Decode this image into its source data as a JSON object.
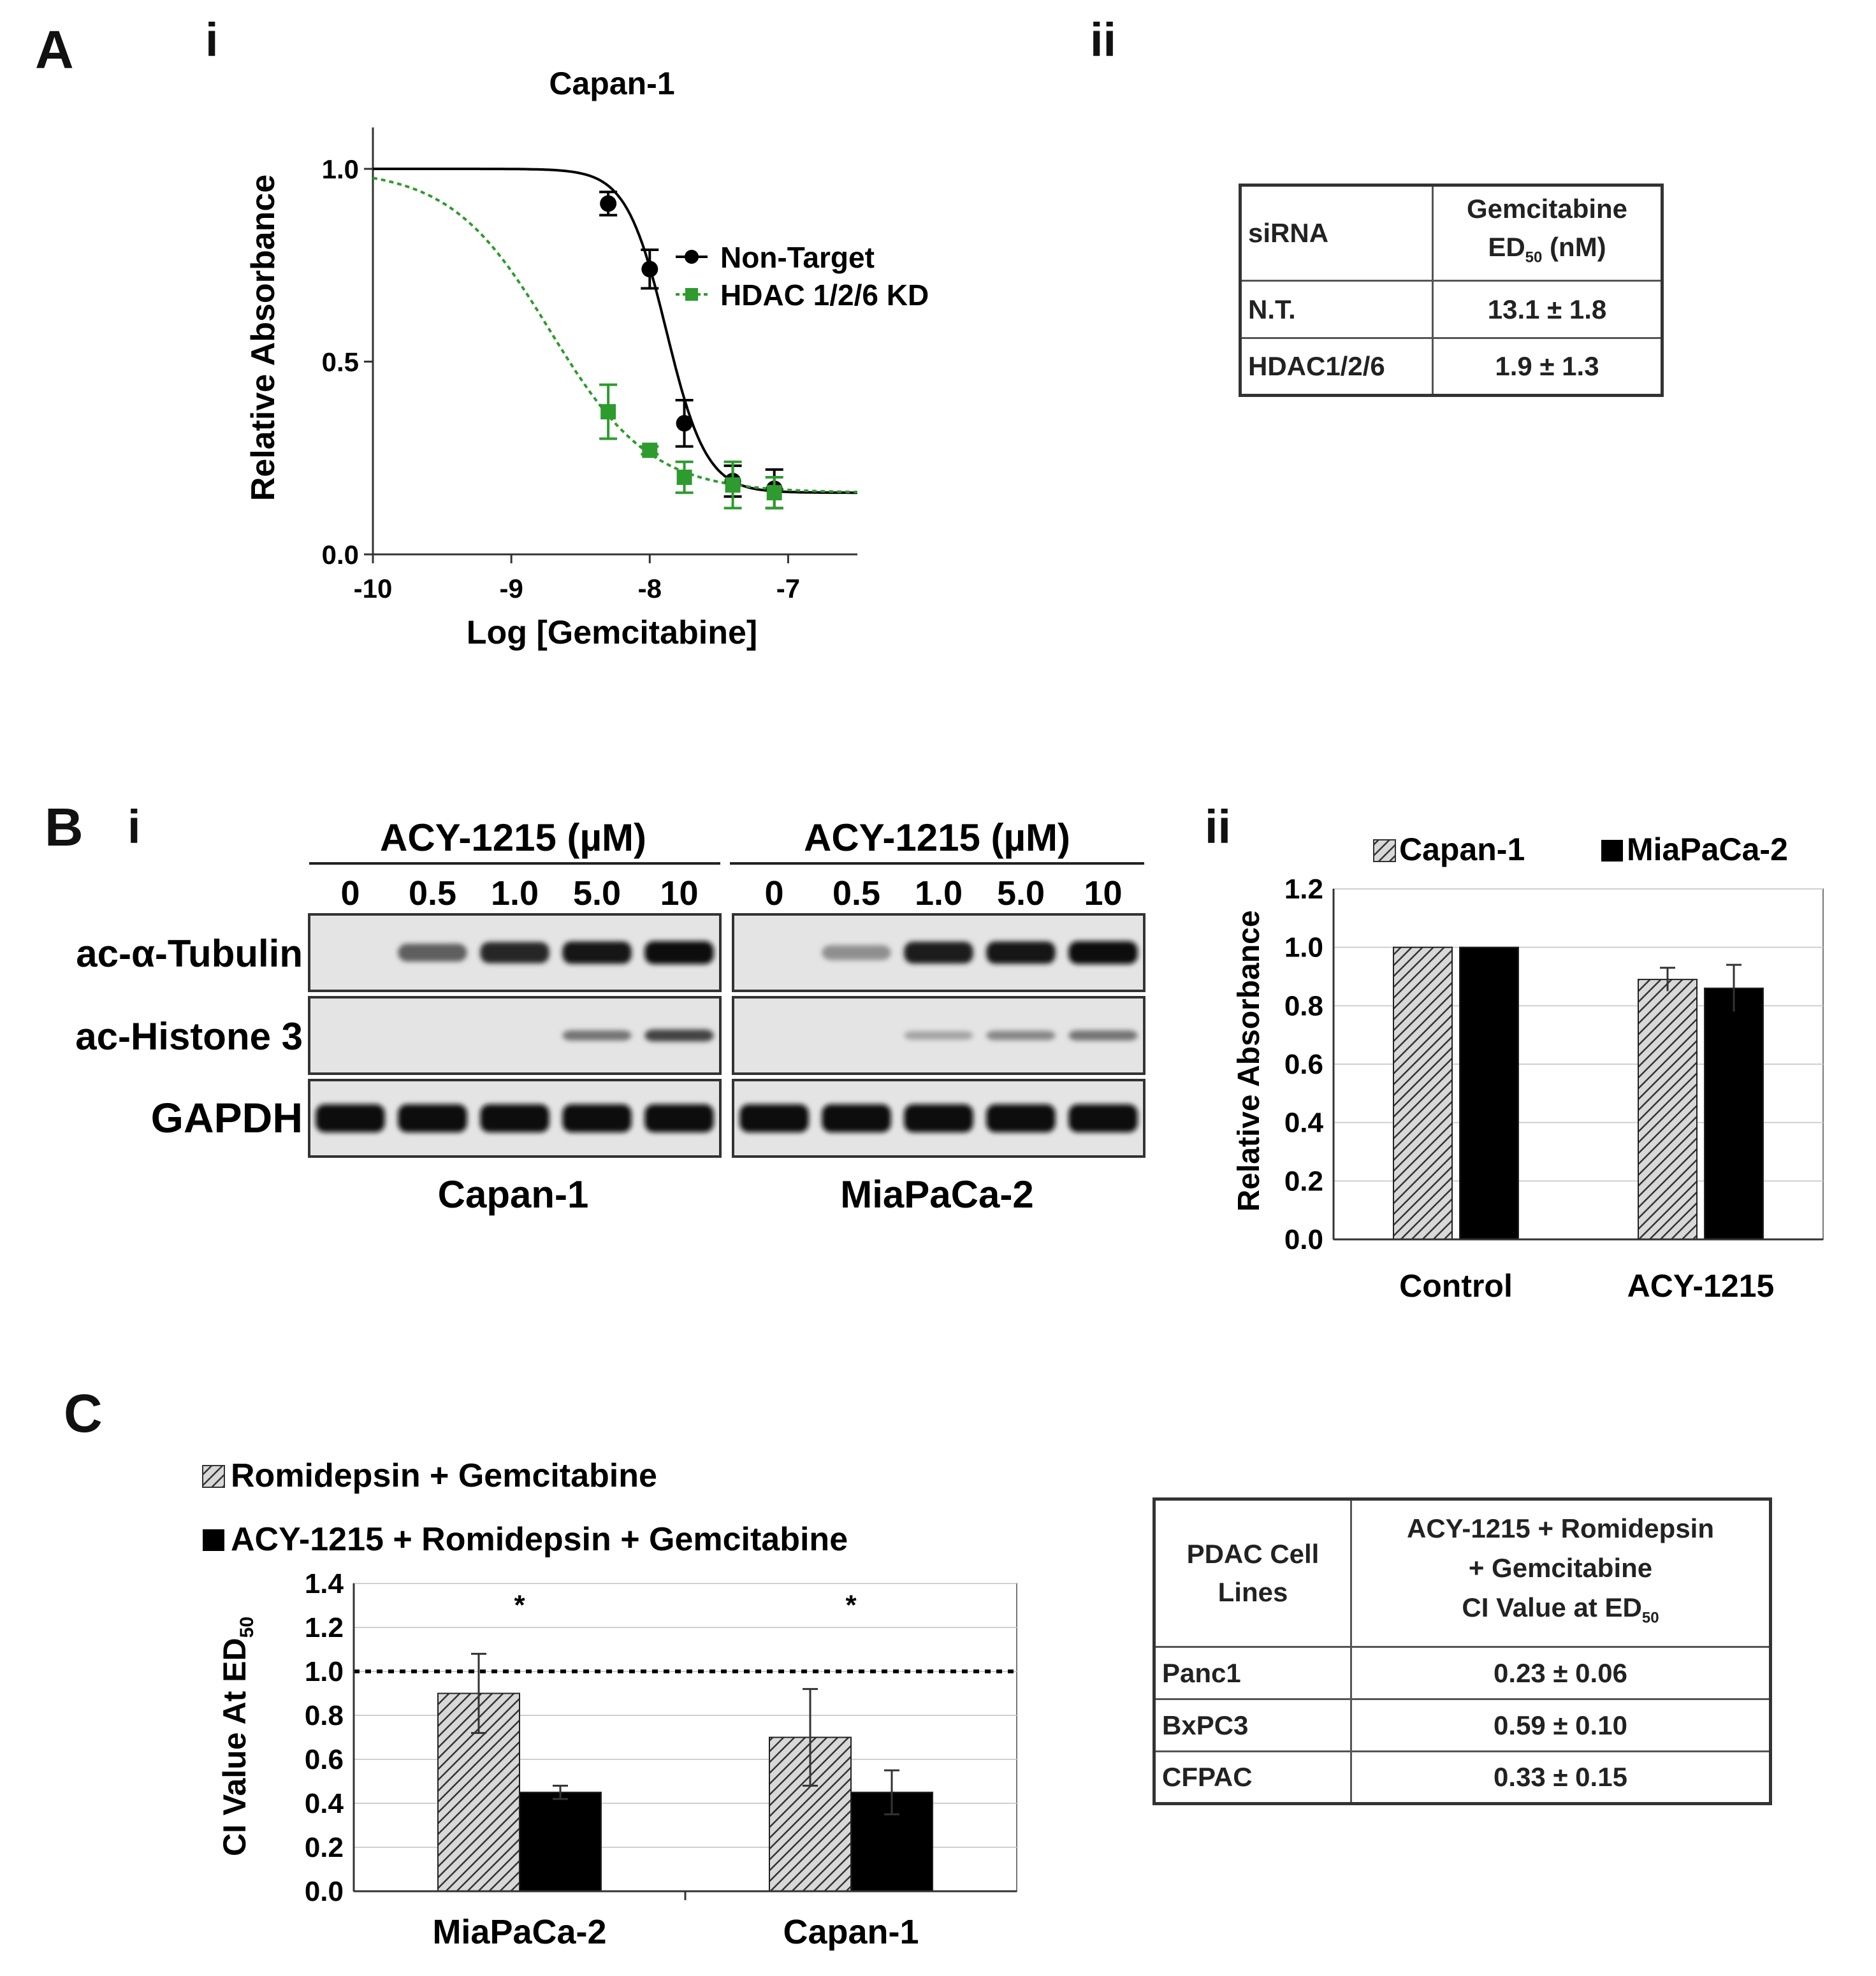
{
  "panelA": {
    "label": "A",
    "sub_i": "i",
    "sub_ii": "ii",
    "chart_data": {
      "type": "line",
      "title": "Capan-1",
      "xlabel": "Log [Gemcitabine]",
      "ylabel": "Relative Absorbance",
      "xlim": [
        -10,
        -6.5
      ],
      "ylim": [
        0,
        1.1
      ],
      "xticks": [
        "-10",
        "-9",
        "-8",
        "-7"
      ],
      "yticks": [
        "0.0",
        "0.5",
        "1.0"
      ],
      "series": [
        {
          "name": "Non-Target",
          "color": "#000000",
          "style": "solid",
          "marker": "circle",
          "x": [
            -8.3,
            -8.0,
            -7.75,
            -7.4,
            -7.1
          ],
          "y": [
            0.91,
            0.74,
            0.34,
            0.19,
            0.17
          ],
          "err": [
            0.03,
            0.05,
            0.06,
            0.04,
            0.05
          ],
          "fit": {
            "top": 1.0,
            "bottom": 0.16,
            "logEC50": -7.88,
            "hill": 3.0
          }
        },
        {
          "name": "HDAC 1/2/6 KD",
          "color": "#2e9b2e",
          "style": "dotted",
          "marker": "square",
          "x": [
            -8.3,
            -8.0,
            -7.75,
            -7.4,
            -7.1
          ],
          "y": [
            0.37,
            0.27,
            0.2,
            0.18,
            0.16
          ],
          "err": [
            0.07,
            0.01,
            0.04,
            0.06,
            0.04
          ],
          "fit": {
            "top": 1.0,
            "bottom": 0.16,
            "logEC50": -8.72,
            "hill": 1.2
          }
        }
      ]
    },
    "table": {
      "header": [
        "siRNA",
        "Gemcitabine",
        "ED",
        "50",
        "(nM)"
      ],
      "rows": [
        [
          "N.T.",
          "13.1 ± 1.8"
        ],
        [
          "HDAC1/2/6",
          "1.9 ± 1.3"
        ]
      ]
    }
  },
  "panelB": {
    "label": "B",
    "sub_i": "i",
    "sub_ii": "ii",
    "blot": {
      "treatment": "ACY-1215 (µM)",
      "doses": [
        "0",
        "0.5",
        "1.0",
        "5.0",
        "10"
      ],
      "rows": [
        "ac-α-Tubulin",
        "ac-Histone 3",
        "GAPDH"
      ],
      "cell_lines": [
        "Capan-1",
        "MiaPaCa-2"
      ],
      "intensity": {
        "Capan-1": {
          "tub": [
            0.0,
            0.55,
            0.85,
            0.95,
            1.0
          ],
          "his": [
            0.0,
            0.0,
            0.0,
            0.45,
            0.7
          ],
          "gapdh": [
            1,
            1,
            1,
            1,
            1
          ]
        },
        "MiaPaCa-2": {
          "tub": [
            0.0,
            0.3,
            0.9,
            0.95,
            1.0
          ],
          "his": [
            0.0,
            0.0,
            0.2,
            0.35,
            0.45
          ],
          "gapdh": [
            1,
            1,
            1,
            1,
            1
          ]
        }
      }
    },
    "chart_data": {
      "type": "bar",
      "categories": [
        "Control",
        "ACY-1215"
      ],
      "series": [
        {
          "name": "Capan-1",
          "pattern": "hatched",
          "values": [
            1.0,
            0.89
          ],
          "err": [
            0,
            0.04
          ]
        },
        {
          "name": "MiaPaCa-2",
          "pattern": "solid",
          "values": [
            1.0,
            0.86
          ],
          "err": [
            0,
            0.08
          ]
        }
      ],
      "ylabel": "Relative Absorbance",
      "ylim": [
        0,
        1.2
      ],
      "yticks": [
        "0.0",
        "0.2",
        "0.4",
        "0.6",
        "0.8",
        "1.0",
        "1.2"
      ],
      "legend": "top"
    }
  },
  "panelC": {
    "label": "C",
    "chart_data": {
      "type": "bar",
      "categories": [
        "MiaPaCa-2",
        "Capan-1"
      ],
      "series": [
        {
          "name": "Romidepsin + Gemcitabine",
          "pattern": "hatched",
          "values": [
            0.9,
            0.7
          ],
          "err": [
            0.18,
            0.22
          ]
        },
        {
          "name": "ACY-1215 + Romidepsin + Gemcitabine",
          "pattern": "solid",
          "values": [
            0.45,
            0.45
          ],
          "err": [
            0.03,
            0.1
          ]
        }
      ],
      "ylabel": "CI Value At ED",
      "ylabel_sub": "50",
      "ylim": [
        0,
        1.4
      ],
      "yticks": [
        "0.0",
        "0.2",
        "0.4",
        "0.6",
        "0.8",
        "1.0",
        "1.2",
        "1.4"
      ],
      "reference_line": 1.0,
      "significance": [
        "*",
        "*"
      ]
    },
    "table": {
      "header_left": [
        "PDAC Cell",
        "Lines"
      ],
      "header_right": [
        "ACY-1215 + Romidepsin",
        "+ Gemcitabine",
        "CI Value at ED",
        "50"
      ],
      "rows": [
        [
          "Panc1",
          "0.23 ± 0.06"
        ],
        [
          "BxPC3",
          "0.59 ± 0.10"
        ],
        [
          "CFPAC",
          "0.33 ± 0.15"
        ]
      ]
    }
  }
}
